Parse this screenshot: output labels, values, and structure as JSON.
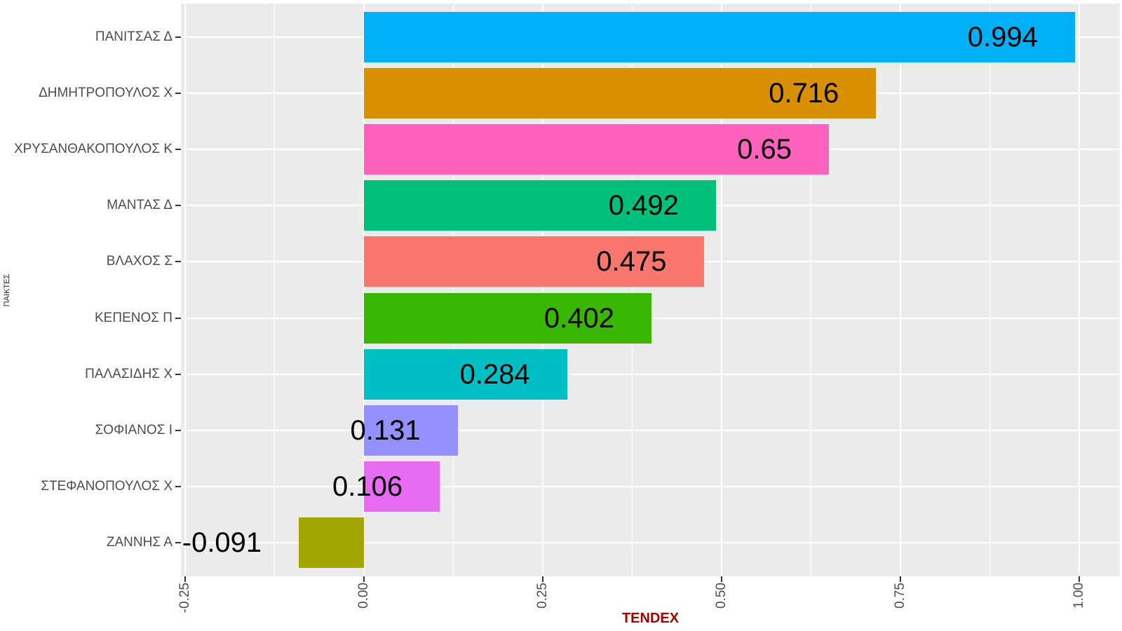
{
  "chart_data": {
    "type": "bar",
    "orientation": "horizontal",
    "xlabel": "TENDEX",
    "ylabel": "ΠΑΙΚΤΕΣ",
    "categories": [
      "ΠΑΝΙΤΣΑΣ Δ",
      "ΔΗΜΗΤΡΟΠΟΥΛΟΣ Χ",
      "ΧΡΥΣΑΝΘΑΚΟΠΟΥΛΟΣ Κ",
      "ΜΑΝΤΑΣ Δ",
      "ΒΛΑΧΟΣ Σ",
      "ΚΕΠΕΝΟΣ Π",
      "ΠΑΛΑΣΙΔΗΣ Χ",
      "ΣΟΦΙΑΝΟΣ Ι",
      "ΣΤΕΦΑΝΟΠΟΥΛΟΣ Χ",
      "ΖΑΝΝΗΣ Α"
    ],
    "values": [
      0.994,
      0.716,
      0.65,
      0.492,
      0.475,
      0.402,
      0.284,
      0.131,
      0.106,
      -0.091
    ],
    "value_labels": [
      "0.994",
      "0.716",
      "0.65",
      "0.492",
      "0.475",
      "0.402",
      "0.284",
      "0.131",
      "0.106",
      "-0.091"
    ],
    "bar_colors": [
      "#00B0F6",
      "#D89000",
      "#FF62BC",
      "#00BF7D",
      "#F8766D",
      "#39B600",
      "#00BFC4",
      "#9590FF",
      "#E76BF3",
      "#A3A500"
    ],
    "x_ticks": {
      "labels": [
        "-0.25",
        "0.00",
        "0.25",
        "0.50",
        "0.75",
        "1.00"
      ],
      "values": [
        -0.25,
        0.0,
        0.25,
        0.5,
        0.75,
        1.0
      ]
    },
    "x_minor_ticks": [
      -0.125,
      0.125,
      0.375,
      0.625,
      0.875
    ],
    "xlim": [
      -0.256,
      1.057
    ],
    "legend": "none",
    "grid": "on",
    "colors": {
      "panel_background": "#EBEBEB",
      "gridline": "#FFFFFF",
      "axis_text": "#4D4D4D",
      "tick_mark": "#333333",
      "value_label": "#000000",
      "xlabel_color": "#A00000",
      "ylabel_color": "#222222",
      "outer_background": "#FFFFFF"
    }
  }
}
